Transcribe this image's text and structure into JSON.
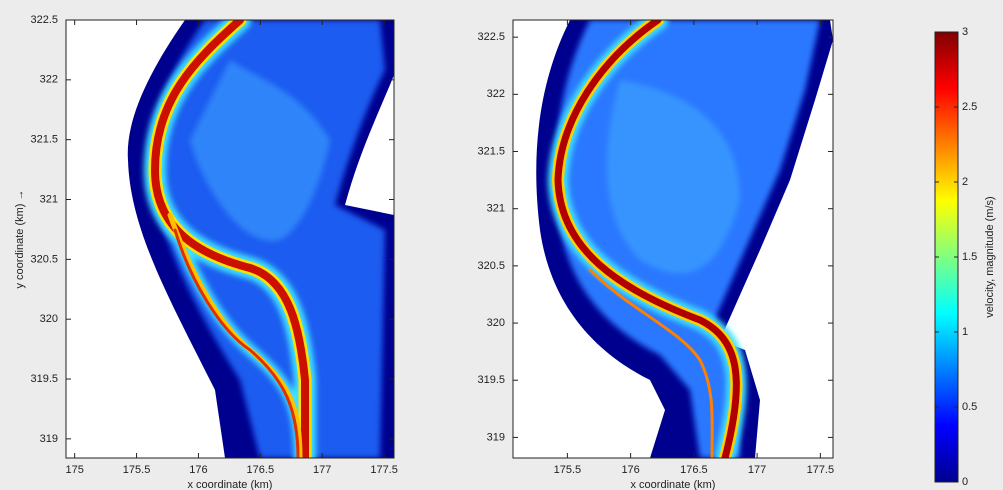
{
  "chart_data": [
    {
      "type": "heatmap",
      "xlabel": "x coordinate (km)",
      "ylabel": "y coordinate (km) →",
      "xlim": [
        174.93,
        177.58
      ],
      "xticks": [
        175,
        175.5,
        176,
        176.5,
        177,
        177.5
      ],
      "ylim": [
        318.84,
        322.5
      ],
      "yticks": [
        319,
        319.5,
        320,
        320.5,
        321,
        321.5,
        322,
        322.5
      ]
    },
    {
      "type": "heatmap",
      "xlabel": "x coordinate (km)",
      "xlim": [
        175.07,
        177.6
      ],
      "xticks": [
        175.5,
        176,
        176.5,
        177,
        177.5
      ],
      "ylim": [
        318.82,
        322.65
      ],
      "yticks": [
        319,
        319.5,
        320,
        320.5,
        321,
        321.5,
        322,
        322.5
      ]
    },
    {
      "type": "colorbar",
      "label": "velocity, magnitude (m/s)",
      "colormap": "jet",
      "ylim": [
        0,
        3
      ],
      "yticks": [
        0,
        0.5,
        1,
        1.5,
        2,
        2.5,
        3
      ]
    }
  ]
}
